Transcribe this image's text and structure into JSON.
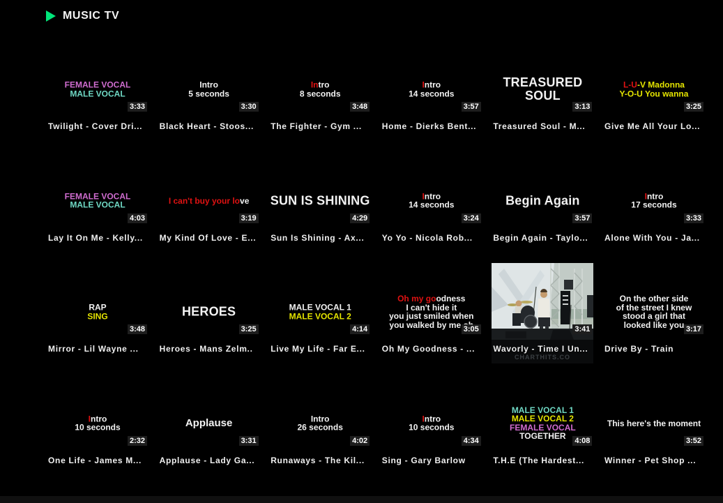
{
  "header": {
    "app_title": "MUSIC TV",
    "logo_icon": "play-icon"
  },
  "palette": {
    "accent_green": "#00e67a",
    "female_vocal": "#cf6ccf",
    "male_vocal": "#6fd8c4",
    "karaoke_yellow": "#e4e400",
    "karaoke_red": "#e01212",
    "text_white": "#f2f2f2",
    "badge_bg": "#1e1e1e"
  },
  "tiles": [
    {
      "title": "Twilight - Cover Dri...",
      "duration": "3:33",
      "preview_size": "small",
      "preview_lines": [
        [
          {
            "text": "FEMALE VOCAL",
            "color": "female_vocal"
          }
        ],
        [
          {
            "text": "MALE VOCAL",
            "color": "male_vocal"
          }
        ]
      ]
    },
    {
      "title": "Black Heart - Stoos...",
      "duration": "3:30",
      "preview_size": "small",
      "preview_lines": [
        [
          {
            "text": "Intro",
            "color": "text_white"
          }
        ],
        [
          {
            "text": "5 seconds",
            "color": "text_white"
          }
        ]
      ]
    },
    {
      "title": "The Fighter - Gym ...",
      "duration": "3:48",
      "preview_size": "small",
      "preview_lines": [
        [
          {
            "text": "In",
            "color": "karaoke_red"
          },
          {
            "text": "tro",
            "color": "text_white"
          }
        ],
        [
          {
            "text": "8 seconds",
            "color": "text_white"
          }
        ]
      ]
    },
    {
      "title": "Home - Dierks Bent...",
      "duration": "3:57",
      "preview_size": "small",
      "preview_lines": [
        [
          {
            "text": "I",
            "color": "karaoke_red"
          },
          {
            "text": "ntro",
            "color": "text_white"
          }
        ],
        [
          {
            "text": "14 seconds",
            "color": "text_white"
          }
        ]
      ]
    },
    {
      "title": "Treasured Soul - M...",
      "duration": "3:13",
      "preview_size": "large",
      "preview_lines": [
        [
          {
            "text": "TREASURED SOUL",
            "color": "text_white"
          }
        ]
      ]
    },
    {
      "title": "Give Me All Your Lo...",
      "duration": "3:25",
      "preview_size": "small",
      "preview_lines": [
        [
          {
            "text": "L-U",
            "color": "karaoke_red"
          },
          {
            "text": "-V Madonna",
            "color": "karaoke_yellow"
          }
        ],
        [
          {
            "text": "Y-O-U You wanna",
            "color": "karaoke_yellow"
          }
        ]
      ]
    },
    {
      "title": "Lay It On Me - Kelly...",
      "duration": "4:03",
      "preview_size": "small",
      "preview_lines": [
        [
          {
            "text": "FEMALE VOCAL",
            "color": "female_vocal"
          }
        ],
        [
          {
            "text": "MALE VOCAL",
            "color": "male_vocal"
          }
        ]
      ]
    },
    {
      "title": "My Kind Of Love - E...",
      "duration": "3:19",
      "preview_size": "small",
      "preview_lines": [
        [
          {
            "text": "I can't buy your lo",
            "color": "karaoke_red"
          },
          {
            "text": "ve",
            "color": "text_white"
          }
        ]
      ]
    },
    {
      "title": "Sun Is Shining - Ax...",
      "duration": "4:29",
      "preview_size": "large",
      "preview_lines": [
        [
          {
            "text": "SUN IS SHINING",
            "color": "text_white"
          }
        ]
      ]
    },
    {
      "title": "Yo Yo - Nicola Rob...",
      "duration": "3:24",
      "preview_size": "small",
      "preview_lines": [
        [
          {
            "text": "I",
            "color": "karaoke_red"
          },
          {
            "text": "ntro",
            "color": "text_white"
          }
        ],
        [
          {
            "text": "14 seconds",
            "color": "text_white"
          }
        ]
      ]
    },
    {
      "title": "Begin Again - Taylo...",
      "duration": "3:57",
      "preview_size": "large",
      "preview_lines": [
        [
          {
            "text": "Begin Again",
            "color": "text_white"
          }
        ]
      ]
    },
    {
      "title": "Alone With You - Ja...",
      "duration": "3:33",
      "preview_size": "small",
      "preview_lines": [
        [
          {
            "text": "I",
            "color": "karaoke_red"
          },
          {
            "text": "ntro",
            "color": "text_white"
          }
        ],
        [
          {
            "text": "17 seconds",
            "color": "text_white"
          }
        ]
      ]
    },
    {
      "title": "Mirror - Lil Wayne ...",
      "duration": "3:48",
      "preview_size": "small",
      "preview_lines": [
        [
          {
            "text": "RAP",
            "color": "text_white"
          }
        ],
        [
          {
            "text": "SING",
            "color": "karaoke_yellow"
          }
        ]
      ]
    },
    {
      "title": "Heroes - Mans Zelm..",
      "duration": "3:25",
      "preview_size": "large",
      "preview_lines": [
        [
          {
            "text": "HEROES",
            "color": "text_white"
          }
        ]
      ]
    },
    {
      "title": "Live My Life - Far E...",
      "duration": "4:14",
      "preview_size": "small",
      "preview_lines": [
        [
          {
            "text": "MALE VOCAL 1",
            "color": "text_white"
          }
        ],
        [
          {
            "text": "MALE VOCAL 2",
            "color": "karaoke_yellow"
          }
        ]
      ]
    },
    {
      "title": "Oh My Goodness - ...",
      "duration": "3:05",
      "preview_size": "small",
      "preview_lines": [
        [
          {
            "text": "Oh my go",
            "color": "karaoke_red"
          },
          {
            "text": "odness",
            "color": "text_white"
          }
        ],
        [
          {
            "text": "I can't hide it",
            "color": "text_white"
          }
        ],
        [
          {
            "text": "you just smiled when",
            "color": "text_white"
          }
        ],
        [
          {
            "text": "you walked by me oh",
            "color": "text_white"
          }
        ]
      ]
    },
    {
      "title": "Wavorly - Time I Un...",
      "duration": "3:41",
      "photo": true,
      "photo_description": "outdoor stage with drummer and singer in white shirt",
      "watermark": "CHARTHITS.CO"
    },
    {
      "title": "Drive By - Train",
      "duration": "3:17",
      "preview_size": "small",
      "preview_lines": [
        [
          {
            "text": "On the other side",
            "color": "text_white"
          }
        ],
        [
          {
            "text": "of the street I knew",
            "color": "text_white"
          }
        ],
        [
          {
            "text": "stood a girl that",
            "color": "text_white"
          }
        ],
        [
          {
            "text": "looked like you",
            "color": "text_white"
          }
        ]
      ]
    },
    {
      "title": "One Life - James M...",
      "duration": "2:32",
      "preview_size": "small",
      "preview_lines": [
        [
          {
            "text": "I",
            "color": "karaoke_red"
          },
          {
            "text": "ntro",
            "color": "text_white"
          }
        ],
        [
          {
            "text": "10 seconds",
            "color": "text_white"
          }
        ]
      ]
    },
    {
      "title": "Applause - Lady Ga...",
      "duration": "3:31",
      "preview_size": "medium",
      "preview_lines": [
        [
          {
            "text": "Applause",
            "color": "text_white"
          }
        ]
      ]
    },
    {
      "title": "Runaways - The Kil...",
      "duration": "4:02",
      "preview_size": "small",
      "preview_lines": [
        [
          {
            "text": "Intro",
            "color": "text_white"
          }
        ],
        [
          {
            "text": "26 seconds",
            "color": "text_white"
          }
        ]
      ]
    },
    {
      "title": "Sing - Gary Barlow",
      "duration": "4:34",
      "preview_size": "small",
      "preview_lines": [
        [
          {
            "text": "I",
            "color": "karaoke_red"
          },
          {
            "text": "ntro",
            "color": "text_white"
          }
        ],
        [
          {
            "text": "10 seconds",
            "color": "text_white"
          }
        ]
      ]
    },
    {
      "title": "T.H.E (The Hardest...",
      "duration": "4:08",
      "preview_size": "small",
      "preview_lines": [
        [
          {
            "text": "MALE VOCAL 1",
            "color": "male_vocal"
          }
        ],
        [
          {
            "text": "MALE VOCAL 2",
            "color": "karaoke_yellow"
          }
        ],
        [
          {
            "text": "FEMALE VOCAL",
            "color": "female_vocal"
          }
        ],
        [
          {
            "text": "TOGETHER",
            "color": "text_white"
          }
        ]
      ]
    },
    {
      "title": "Winner - Pet Shop ...",
      "duration": "3:52",
      "preview_size": "small",
      "preview_lines": [
        [
          {
            "text": "This here's the moment",
            "color": "text_white"
          }
        ]
      ]
    }
  ]
}
